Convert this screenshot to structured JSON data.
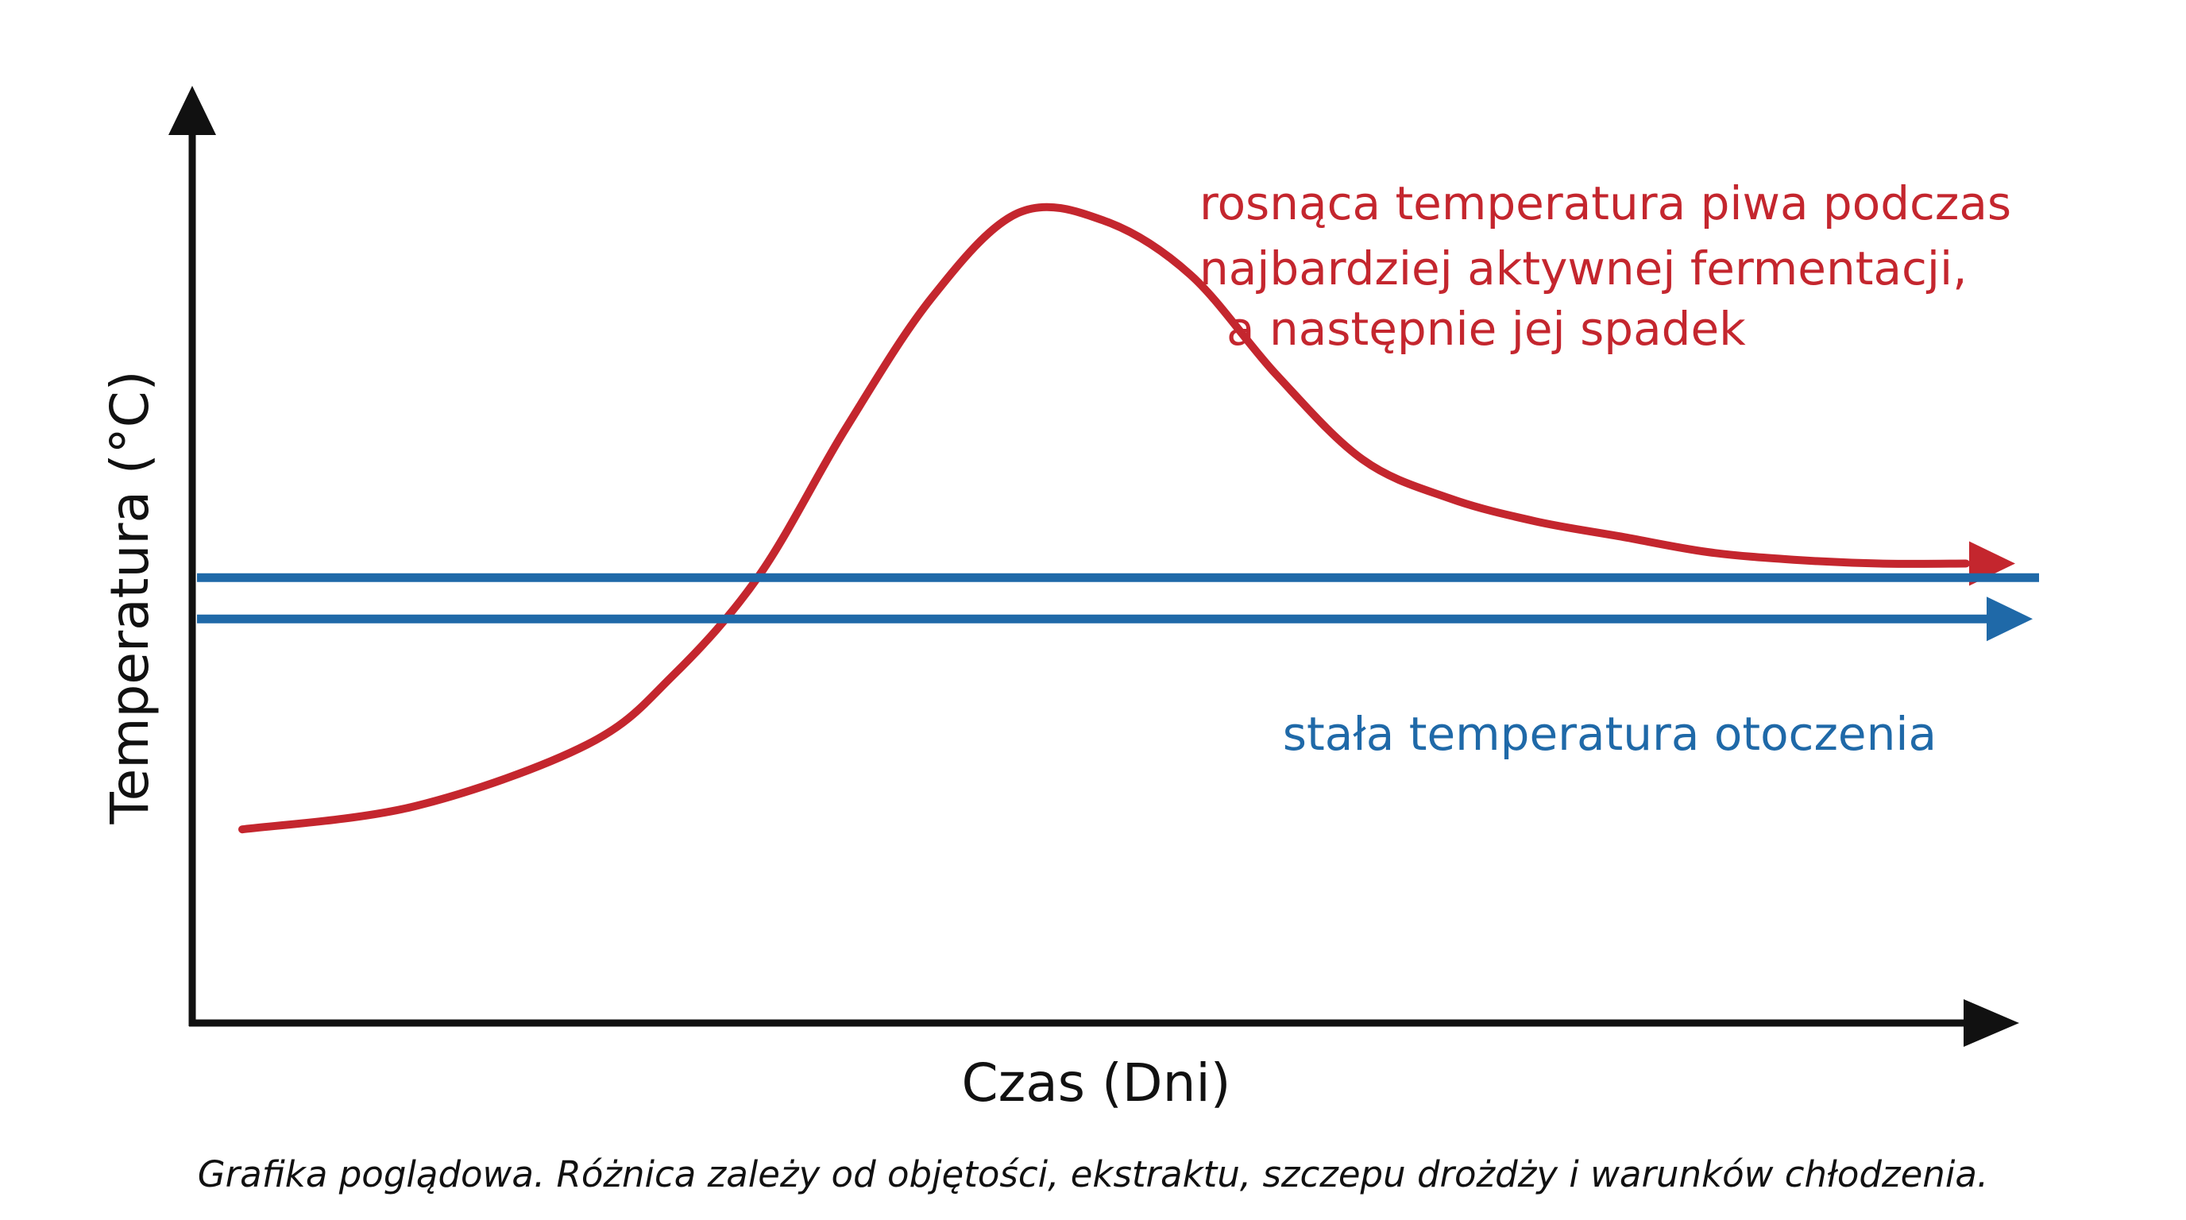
{
  "chart_data": {
    "type": "line",
    "xlabel": "Czas (Dni)",
    "ylabel": "Temperatura (°C)",
    "x_ticks": false,
    "y_ticks": false,
    "grid": false,
    "series": [
      {
        "label": "rosnąca temperatura piwa podczas najbardziej aktywnej fermentacji, a następnie jej spadek",
        "color": "#c4262e",
        "shape": "rise to a peak, then decline and level off above ambient",
        "x": [
          0.0,
          0.1,
          0.2,
          0.25,
          0.3,
          0.35,
          0.4,
          0.45,
          0.5,
          0.55,
          0.6,
          0.65,
          0.7,
          0.75,
          0.8,
          0.85,
          0.9,
          0.95,
          1.0
        ],
        "y": [
          0.14,
          0.17,
          0.25,
          0.34,
          0.47,
          0.66,
          0.83,
          0.94,
          0.93,
          0.86,
          0.73,
          0.62,
          0.57,
          0.54,
          0.52,
          0.5,
          0.49,
          0.485,
          0.485
        ]
      },
      {
        "label": "stała temperatura otoczenia",
        "color": "#1f69a8",
        "shape": "constant",
        "x": [
          0.0,
          1.0
        ],
        "y": [
          0.44,
          0.44
        ]
      }
    ],
    "annotations": [
      "rosnąca temperatura piwa podczas",
      "najbardziej aktywnej fermentacji,",
      "a następnie jej spadek",
      "stała temperatura otoczenia"
    ]
  },
  "labels": {
    "x_axis": "Czas (Dni)",
    "y_axis": "Temperatura (°C)",
    "red_line_1": "rosnąca temperatura piwa podczas",
    "red_line_2": "najbardziej aktywnej fermentacji,",
    "red_line_3": "a następnie jej spadek",
    "blue_label": "stała temperatura otoczenia",
    "caption": "Grafika poglądowa. Różnica zależy od objętości, ekstraktu, szczepu drożdży i warunków chłodzenia."
  },
  "colors": {
    "fermentation": "#c4262e",
    "ambient": "#1f69a8",
    "axes": "#111111"
  }
}
